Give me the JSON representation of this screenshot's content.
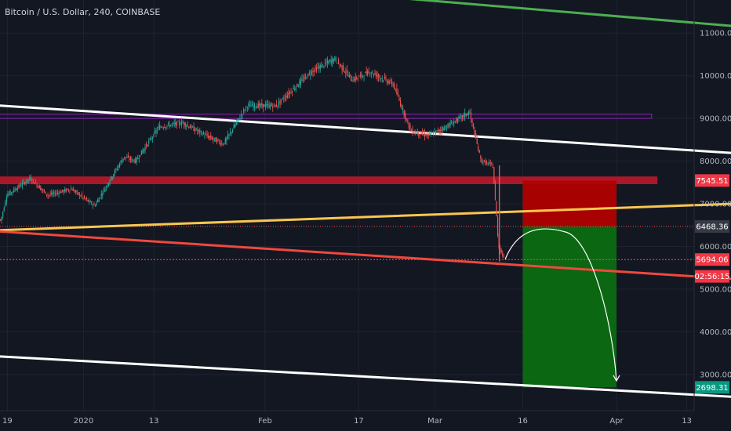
{
  "header": {
    "title": "Bitcoin / U.S. Dollar, 240, COINBASE"
  },
  "chart_data": {
    "type": "line",
    "title": "Bitcoin / U.S. Dollar, 240, COINBASE",
    "xlabel": "",
    "ylabel": "",
    "ylim": [
      2400,
      12000
    ],
    "x_ticks": [
      "9",
      "19",
      "2020",
      "13",
      "Feb",
      "17",
      "Mar",
      "16",
      "Apr",
      "13"
    ],
    "y_ticks": [
      3000,
      4000,
      5000,
      6000,
      7000,
      8000,
      9000,
      10000,
      11000
    ],
    "y_tick_labels": [
      "3000.00",
      "4000.00",
      "5000.00",
      "6000.00",
      "7000.00",
      "8000.00",
      "9000.00",
      "10000.00",
      "11000.00"
    ],
    "price_series": [
      {
        "x": "2019-12-05",
        "y": 7500
      },
      {
        "x": "2019-12-10",
        "y": 7300
      },
      {
        "x": "2019-12-14",
        "y": 7150
      },
      {
        "x": "2019-12-18",
        "y": 6600
      },
      {
        "x": "2019-12-19",
        "y": 7200
      },
      {
        "x": "2019-12-23",
        "y": 7600
      },
      {
        "x": "2019-12-26",
        "y": 7200
      },
      {
        "x": "2019-12-30",
        "y": 7350
      },
      {
        "x": "2020-01-03",
        "y": 6950
      },
      {
        "x": "2020-01-06",
        "y": 7650
      },
      {
        "x": "2020-01-08",
        "y": 8100
      },
      {
        "x": "2020-01-10",
        "y": 8000
      },
      {
        "x": "2020-01-14",
        "y": 8800
      },
      {
        "x": "2020-01-18",
        "y": 8900
      },
      {
        "x": "2020-01-22",
        "y": 8600
      },
      {
        "x": "2020-01-25",
        "y": 8400
      },
      {
        "x": "2020-01-29",
        "y": 9300
      },
      {
        "x": "2020-02-03",
        "y": 9300
      },
      {
        "x": "2020-02-06",
        "y": 9700
      },
      {
        "x": "2020-02-09",
        "y": 10100
      },
      {
        "x": "2020-02-13",
        "y": 10400
      },
      {
        "x": "2020-02-16",
        "y": 9900
      },
      {
        "x": "2020-02-19",
        "y": 10100
      },
      {
        "x": "2020-02-23",
        "y": 9800
      },
      {
        "x": "2020-02-26",
        "y": 8700
      },
      {
        "x": "2020-02-29",
        "y": 8600
      },
      {
        "x": "2020-03-03",
        "y": 8800
      },
      {
        "x": "2020-03-07",
        "y": 9150
      },
      {
        "x": "2020-03-09",
        "y": 8000
      },
      {
        "x": "2020-03-11",
        "y": 7900
      },
      {
        "x": "2020-03-12",
        "y": 6000
      },
      {
        "x": "2020-03-13",
        "y": 5700
      }
    ],
    "trendlines": [
      {
        "color": "#4caf50",
        "from": {
          "x": "2019-12-01",
          "y": 12800
        },
        "to": {
          "x": "2020-05-01",
          "y": 11050
        }
      },
      {
        "color": "#ffffff",
        "from": {
          "x": "2019-12-01",
          "y": 9450
        },
        "to": {
          "x": "2020-05-01",
          "y": 8100
        }
      },
      {
        "color": "#ffffff",
        "from": {
          "x": "2019-12-01",
          "y": 3550
        },
        "to": {
          "x": "2020-05-01",
          "y": 2400
        }
      },
      {
        "color": "#f9c74f",
        "from": {
          "x": "2019-12-01",
          "y": 6300
        },
        "to": {
          "x": "2020-05-01",
          "y": 7050
        }
      },
      {
        "color": "#f0483e",
        "from": {
          "x": "2019-12-01",
          "y": 6500
        },
        "to": {
          "x": "2020-05-01",
          "y": 5150
        }
      }
    ],
    "zones": [
      {
        "type": "resistance",
        "color": "#b2182b",
        "y_from": 7460,
        "y_to": 7640,
        "x_from": "2019-12-01",
        "x_to": "2020-04-08"
      },
      {
        "type": "range",
        "color": "#7b1fa2",
        "y_from": 9000,
        "y_to": 9100,
        "x_from": "2019-12-01",
        "x_to": "2020-04-07"
      }
    ],
    "position": {
      "entry": 6468.36,
      "stop": 7545.51,
      "target": 2698.31,
      "x_from": "2020-03-16",
      "x_to": "2020-04-01"
    },
    "current_price": 5694.06,
    "countdown": "02:56:15",
    "price_labels": [
      {
        "text": "7545.51",
        "value": 7545.51,
        "color": "#f23645"
      },
      {
        "text": "6468.36",
        "value": 6468.36,
        "color": "#363a45"
      },
      {
        "text": "5694.06",
        "value": 5694.06,
        "color": "#f23645"
      },
      {
        "text": "02:56:15",
        "value": 5300,
        "color": "#f23645"
      },
      {
        "text": "2698.31",
        "value": 2698.31,
        "color": "#089981"
      }
    ],
    "projection": [
      {
        "x": "2020-03-13",
        "y": 5700
      },
      {
        "x": "2020-03-17",
        "y": 6300
      },
      {
        "x": "2020-03-23",
        "y": 6350
      },
      {
        "x": "2020-03-30",
        "y": 4200
      },
      {
        "x": "2020-04-01",
        "y": 2850
      }
    ]
  },
  "colors": {
    "background": "#131722",
    "grid": "#1f2330",
    "up": "#26a69a",
    "down": "#ef5350",
    "axis_text": "#b2b5be"
  }
}
